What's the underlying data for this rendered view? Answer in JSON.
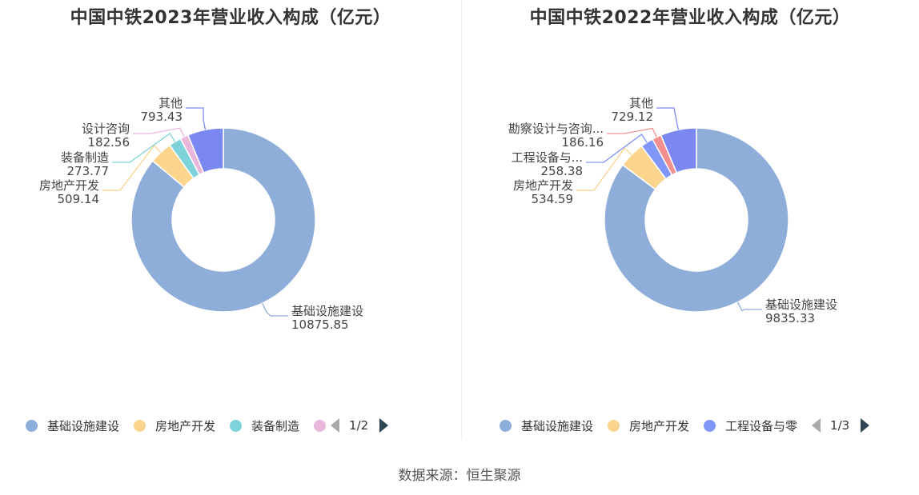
{
  "source": "数据来源：恒生聚源",
  "colors": {
    "基础设施建设": "#8eadd9",
    "房地产开发": "#fbd48e",
    "装备制造": "#7dd3d9",
    "设计咨询": "#e9b7db",
    "其他": "#7b88f1",
    "工程设备与零部件制造": "#8096f8",
    "勘察设计与咨询服务": "#f48f8f"
  },
  "chart_data": [
    {
      "type": "pie",
      "donut": true,
      "title": "中国中铁2023年营业收入构成（亿元）",
      "slices": [
        {
          "name": "基础设施建设",
          "label": "基础设施建设",
          "value": 10875.85,
          "value_label": "10875.85"
        },
        {
          "name": "房地产开发",
          "label": "房地产开发",
          "value": 509.14,
          "value_label": "509.14"
        },
        {
          "name": "装备制造",
          "label": "装备制造",
          "value": 273.77,
          "value_label": "273.77"
        },
        {
          "name": "设计咨询",
          "label": "设计咨询",
          "value": 182.56,
          "value_label": "182.56"
        },
        {
          "name": "其他",
          "label": "其他",
          "value": 793.43,
          "value_label": "793.43"
        }
      ],
      "legend": {
        "items": [
          "基础设施建设",
          "房地产开发",
          "装备制造",
          "设计咨询"
        ],
        "visible_labels": [
          "基础设施建设",
          "房地产开发",
          "装备制造",
          ""
        ],
        "page": "1/2"
      }
    },
    {
      "type": "pie",
      "donut": true,
      "title": "中国中铁2022年营业收入构成（亿元）",
      "slices": [
        {
          "name": "基础设施建设",
          "label": "基础设施建设",
          "value": 9835.33,
          "value_label": "9835.33"
        },
        {
          "name": "房地产开发",
          "label": "房地产开发",
          "value": 534.59,
          "value_label": "534.59"
        },
        {
          "name": "工程设备与零部件制造",
          "label": "工程设备与...",
          "value": 258.38,
          "value_label": "258.38"
        },
        {
          "name": "勘察设计与咨询服务",
          "label": "勘察设计与咨询...",
          "value": 186.16,
          "value_label": "186.16"
        },
        {
          "name": "其他",
          "label": "其他",
          "value": 729.12,
          "value_label": "729.12"
        }
      ],
      "legend": {
        "items": [
          "基础设施建设",
          "房地产开发",
          "工程设备与零部件制造"
        ],
        "visible_labels": [
          "基础设施建设",
          "房地产开发",
          "工程设备与零"
        ],
        "page": "1/3"
      }
    }
  ]
}
